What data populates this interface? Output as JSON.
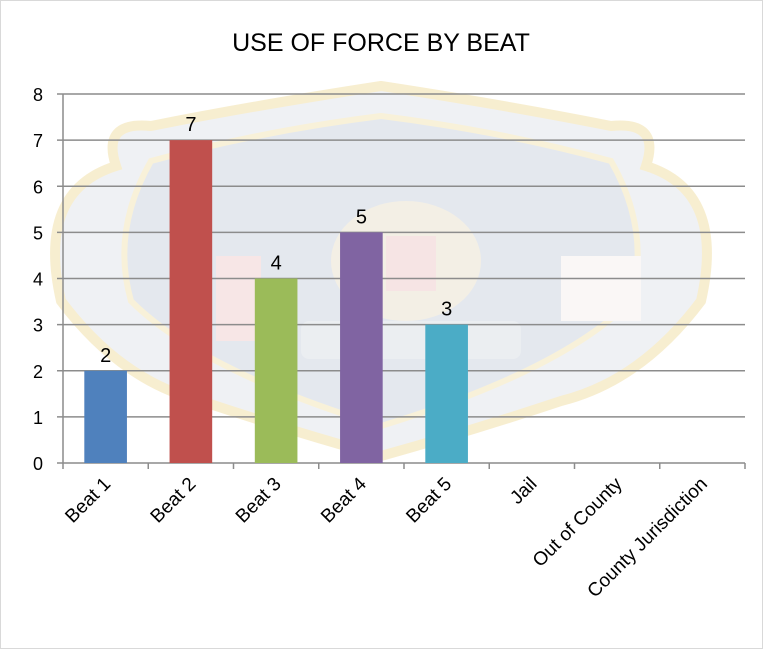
{
  "chart_data": {
    "type": "bar",
    "title": "USE OF FORCE BY BEAT",
    "categories": [
      "Beat 1",
      "Beat 2",
      "Beat 3",
      "Beat 4",
      "Beat 5",
      "Jail",
      "Out of County",
      "County Jurisdiction"
    ],
    "values": [
      2,
      7,
      4,
      5,
      3,
      0,
      0,
      0
    ],
    "data_labels": [
      "2",
      "7",
      "4",
      "5",
      "3",
      "",
      "",
      ""
    ],
    "bar_colors": [
      "#4f81bd",
      "#c0504d",
      "#9bbb59",
      "#8064a2",
      "#4bacc6",
      "",
      "",
      ""
    ],
    "ylim": [
      0,
      8
    ],
    "y_ticks": [
      0,
      1,
      2,
      3,
      4,
      5,
      6,
      7,
      8
    ],
    "grid": true,
    "legend": "none",
    "background_watermark": "police-badge-logo"
  }
}
